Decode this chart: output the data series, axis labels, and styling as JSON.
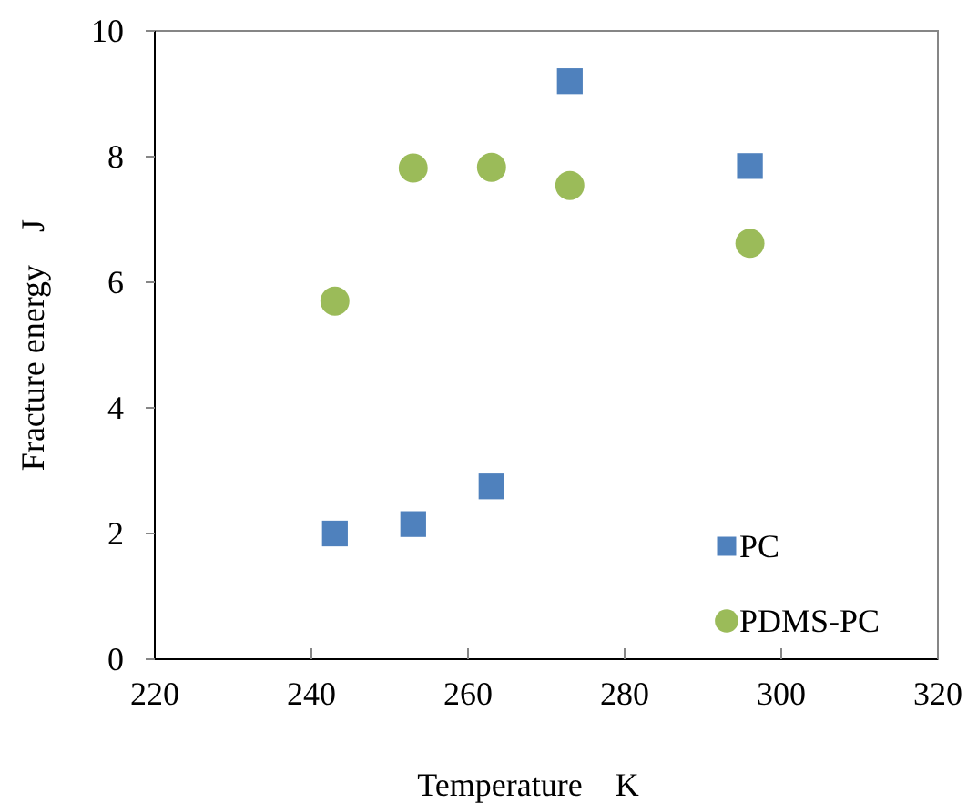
{
  "chart_data": {
    "type": "scatter",
    "xlabel": "Temperature　K",
    "ylabel": "Fracture energy　J",
    "xlim": [
      220,
      320
    ],
    "xticks": [
      220,
      240,
      260,
      280,
      300,
      320
    ],
    "ylim": [
      0,
      10
    ],
    "yticks": [
      0,
      2,
      4,
      6,
      8,
      10
    ],
    "grid": false,
    "legend": "bottom right",
    "series": [
      {
        "name": "PC",
        "color": "#4f81bd",
        "marker": "square",
        "x": [
          243,
          253,
          263,
          273,
          296
        ],
        "values": [
          2.0,
          2.15,
          2.75,
          9.2,
          7.85
        ]
      },
      {
        "name": "PDMS-PC",
        "color": "#9bbb59",
        "marker": "circle",
        "x": [
          243,
          253,
          263,
          273,
          296
        ],
        "values": [
          5.7,
          7.82,
          7.83,
          7.54,
          6.62
        ]
      }
    ]
  }
}
